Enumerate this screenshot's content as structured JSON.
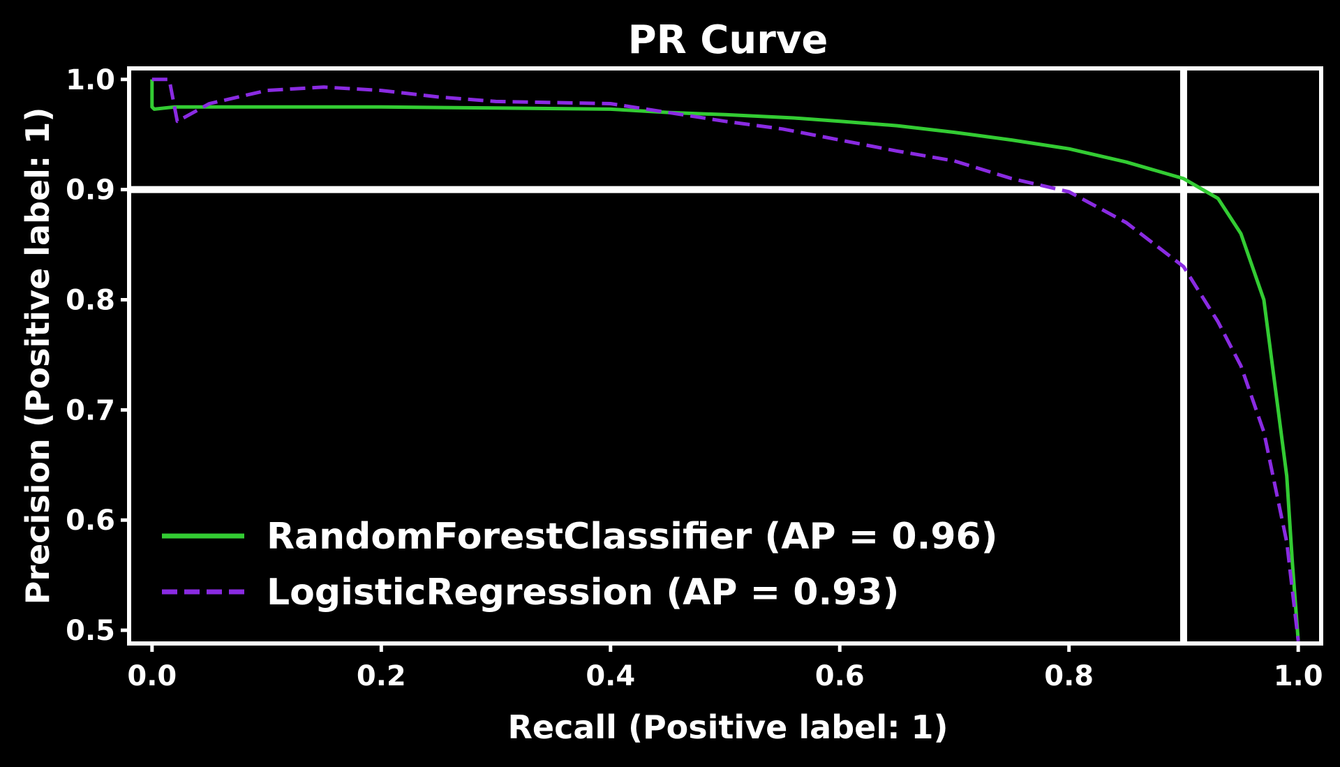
{
  "chart_data": {
    "type": "line",
    "title": "PR Curve",
    "xlabel": "Recall (Positive label: 1)",
    "ylabel": "Precision (Positive label: 1)",
    "xlim": [
      -0.02,
      1.02
    ],
    "ylim": [
      0.488,
      1.01
    ],
    "xticks": [
      "0.0",
      "0.2",
      "0.4",
      "0.6",
      "0.8",
      "1.0"
    ],
    "yticks": [
      "0.5",
      "0.6",
      "0.7",
      "0.8",
      "0.9",
      "1.0"
    ],
    "grid": "sparse: one horizontal line at 0.9, one vertical line at 0.9",
    "legend": "lower-left",
    "series": [
      {
        "name": "RandomForestClassifier (AP = 0.96)",
        "color": "#33cc33",
        "dash": "solid",
        "x": [
          0.0,
          0.0,
          0.002,
          0.02,
          0.1,
          0.2,
          0.3,
          0.4,
          0.45,
          0.5,
          0.56,
          0.6,
          0.65,
          0.7,
          0.75,
          0.8,
          0.85,
          0.9,
          0.93,
          0.95,
          0.97,
          0.98,
          0.99,
          0.995,
          1.0
        ],
        "y": [
          1.0,
          0.975,
          0.973,
          0.975,
          0.975,
          0.975,
          0.974,
          0.973,
          0.97,
          0.968,
          0.965,
          0.962,
          0.958,
          0.952,
          0.945,
          0.937,
          0.925,
          0.91,
          0.892,
          0.86,
          0.8,
          0.72,
          0.64,
          0.56,
          0.49
        ]
      },
      {
        "name": "LogisticRegression (AP = 0.93)",
        "color": "#8a2be2",
        "dash": "dashed",
        "x": [
          0.0,
          0.015,
          0.022,
          0.05,
          0.1,
          0.15,
          0.2,
          0.25,
          0.3,
          0.35,
          0.4,
          0.45,
          0.5,
          0.55,
          0.6,
          0.65,
          0.7,
          0.75,
          0.8,
          0.85,
          0.9,
          0.93,
          0.95,
          0.97,
          0.99,
          1.0
        ],
        "y": [
          1.0,
          1.0,
          0.962,
          0.978,
          0.99,
          0.993,
          0.99,
          0.984,
          0.98,
          0.979,
          0.978,
          0.97,
          0.962,
          0.955,
          0.945,
          0.935,
          0.926,
          0.91,
          0.898,
          0.87,
          0.83,
          0.78,
          0.74,
          0.68,
          0.58,
          0.49
        ]
      }
    ]
  }
}
